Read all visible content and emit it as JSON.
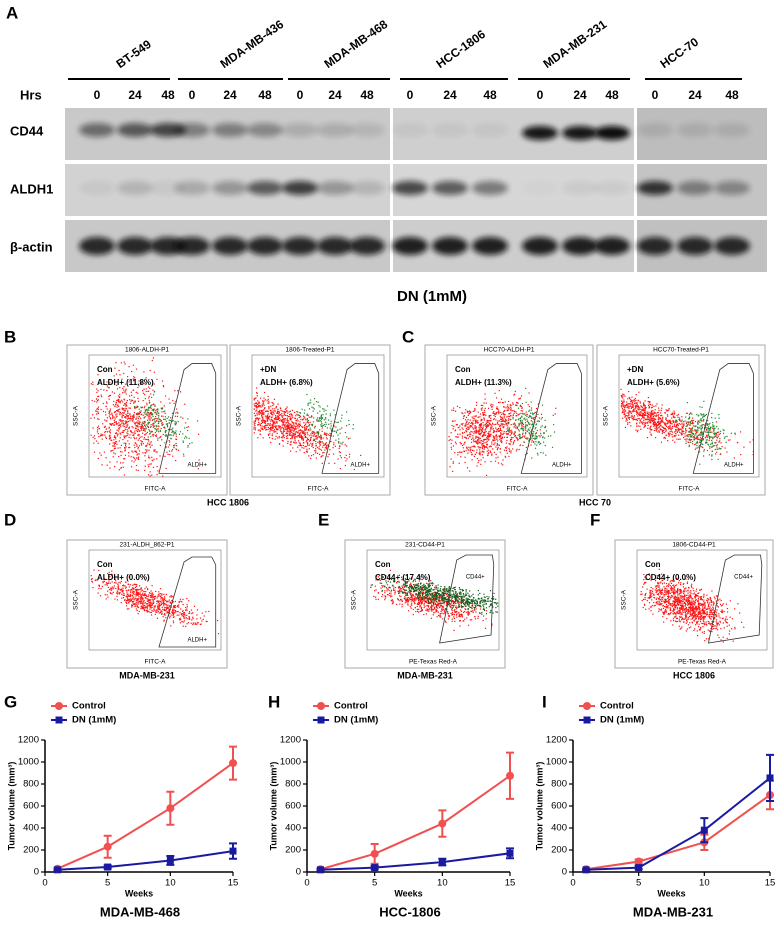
{
  "panel_a": {
    "letter": "A",
    "cell_lines": [
      "BT-549",
      "MDA-MB-436",
      "MDA-MB-468",
      "HCC-1806",
      "MDA-MB-231",
      "HCC-70"
    ],
    "hrs_label": "Hrs",
    "timepoints": [
      "0",
      "24",
      "48"
    ],
    "rows": [
      "CD44",
      "ALDH1",
      "β-actin"
    ],
    "treatment": "DN (1mM)"
  },
  "flow_panels": [
    {
      "letter": "B",
      "caption": "HCC 1806",
      "plots": [
        {
          "title": "1806-ALDH-P1",
          "sample": "Con",
          "stat": "ALDH+ (11.8%)",
          "gate": "ALDH+",
          "x_label": "FITC-A",
          "y_label": "SSC-A"
        },
        {
          "title": "1806-Treated-P1",
          "sample": "+DN",
          "stat": "ALDH+ (6.8%)",
          "gate": "ALDH+",
          "x_label": "FITC-A",
          "y_label": "SSC-A"
        }
      ]
    },
    {
      "letter": "C",
      "caption": "HCC 70",
      "plots": [
        {
          "title": "HCC70-ALDH-P1",
          "sample": "Con",
          "stat": "ALDH+ (11.3%)",
          "gate": "ALDH+",
          "x_label": "FITC-A",
          "y_label": "SSC-A"
        },
        {
          "title": "HCC70-Treated-P1",
          "sample": "+DN",
          "stat": "ALDH+ (5.6%)",
          "gate": "ALDH+",
          "x_label": "FITC-A",
          "y_label": "SSC-A"
        }
      ]
    },
    {
      "letter": "D",
      "caption": "MDA-MB-231",
      "plots": [
        {
          "title": "231-ALDH_862-P1",
          "sample": "Con",
          "stat": "ALDH+ (0.0%)",
          "gate": "ALDH+",
          "x_label": "FITC-A",
          "y_label": "SSC-A"
        }
      ]
    },
    {
      "letter": "E",
      "caption": "MDA-MB-231",
      "plots": [
        {
          "title": "231-CD44-P1",
          "sample": "Con",
          "stat": "CD44+ (17.4%)",
          "gate": "CD44+",
          "x_label": "PE-Texas Red-A",
          "y_label": "SSC-A"
        }
      ]
    },
    {
      "letter": "F",
      "caption": "HCC 1806",
      "plots": [
        {
          "title": "1806-CD44-P1",
          "sample": "Con",
          "stat": "CD44+ (0.0%)",
          "gate": "CD44+",
          "x_label": "PE-Texas Red-A",
          "y_label": "SSC-A"
        }
      ]
    }
  ],
  "chart_data": [
    {
      "type": "line",
      "panel_label": "G",
      "caption": "MDA-MB-468",
      "x_label": "Weeks",
      "y_label": "Tumor volume (mm³)",
      "x": [
        1,
        5,
        10,
        15
      ],
      "xlim": [
        0,
        15
      ],
      "xticks": [
        0,
        5,
        10,
        15
      ],
      "ylim": [
        0,
        1200
      ],
      "yticks": [
        0,
        200,
        400,
        600,
        800,
        1000,
        1200
      ],
      "legend": "upper left",
      "series": [
        {
          "name": "Control",
          "color": "#f05050",
          "marker": "circle",
          "values": [
            30,
            230,
            580,
            990
          ],
          "errors": [
            10,
            100,
            150,
            150
          ]
        },
        {
          "name": "DN (1mM)",
          "color": "#1a1aa0",
          "marker": "square",
          "values": [
            20,
            45,
            105,
            190
          ],
          "errors": [
            5,
            15,
            40,
            70
          ]
        }
      ]
    },
    {
      "type": "line",
      "panel_label": "H",
      "caption": "HCC-1806",
      "x_label": "Weeks",
      "y_label": "Tumor volume (mm³)",
      "x": [
        1,
        5,
        10,
        15
      ],
      "xlim": [
        0,
        15
      ],
      "xticks": [
        0,
        5,
        10,
        15
      ],
      "ylim": [
        0,
        1200
      ],
      "yticks": [
        0,
        200,
        400,
        600,
        800,
        1000,
        1200
      ],
      "legend": "upper left",
      "series": [
        {
          "name": "Control",
          "color": "#f05050",
          "marker": "circle",
          "values": [
            25,
            165,
            440,
            875
          ],
          "errors": [
            10,
            90,
            120,
            210
          ]
        },
        {
          "name": "DN (1mM)",
          "color": "#1a1aa0",
          "marker": "square",
          "values": [
            20,
            40,
            90,
            170
          ],
          "errors": [
            5,
            15,
            30,
            45
          ]
        }
      ]
    },
    {
      "type": "line",
      "panel_label": "I",
      "caption": "MDA-MB-231",
      "x_label": "Weeks",
      "y_label": "Tumor volume (mm³)",
      "x": [
        1,
        5,
        10,
        15
      ],
      "xlim": [
        0,
        15
      ],
      "xticks": [
        0,
        5,
        10,
        15
      ],
      "ylim": [
        0,
        1200
      ],
      "yticks": [
        0,
        200,
        400,
        600,
        800,
        1000,
        1200
      ],
      "legend": "upper left",
      "series": [
        {
          "name": "Control",
          "color": "#f05050",
          "marker": "circle",
          "values": [
            25,
            95,
            270,
            700
          ],
          "errors": [
            5,
            20,
            70,
            130
          ]
        },
        {
          "name": "DN (1mM)",
          "color": "#1a1aa0",
          "marker": "square",
          "values": [
            20,
            40,
            380,
            855
          ],
          "errors": [
            5,
            15,
            110,
            210
          ]
        }
      ]
    }
  ]
}
